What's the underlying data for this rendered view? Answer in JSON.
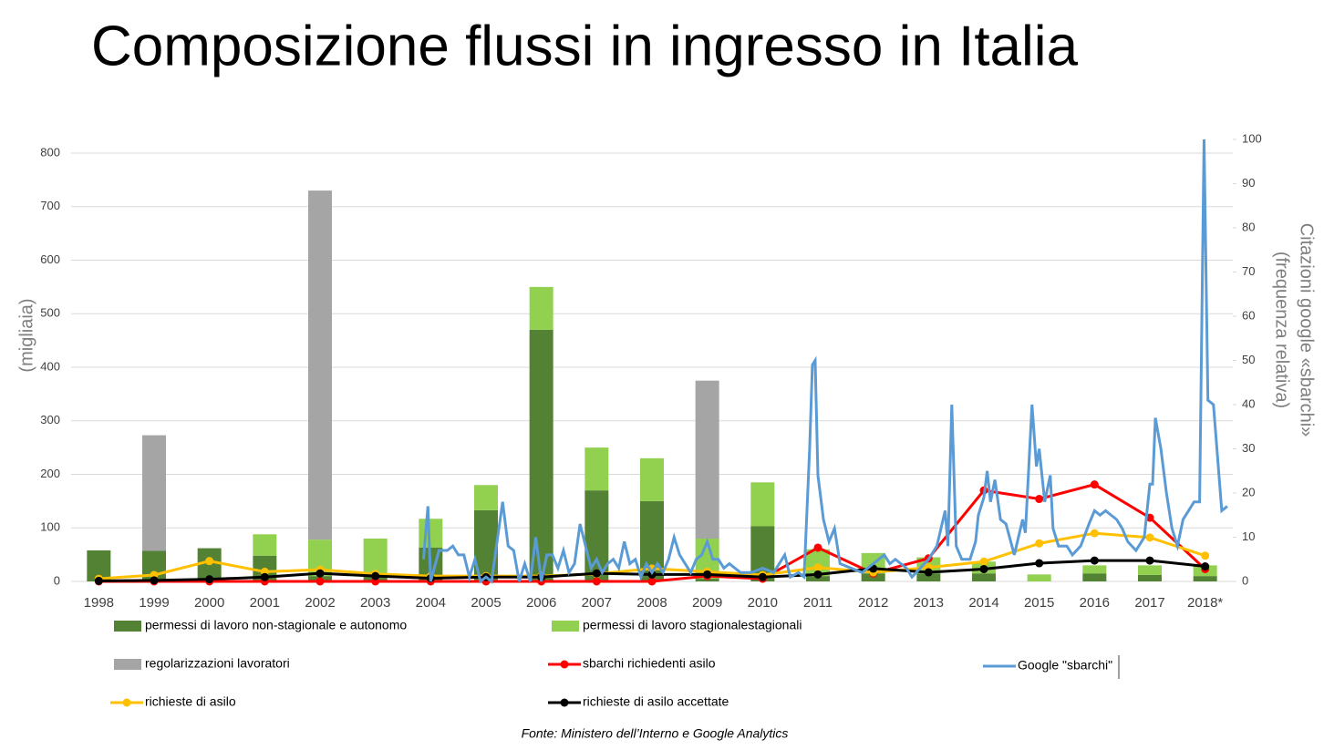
{
  "chart_data": {
    "type": "bar",
    "title": "Composizione flussi in ingresso in Italia",
    "ylabel": "(migliaia)",
    "y2label": [
      "Citazioni google «sbarchi»",
      "(frequenza relativa)"
    ],
    "source": "Fonte: Ministero dell’Interno e Google Analytics",
    "categories": [
      "1998",
      "1999",
      "2000",
      "2001",
      "2002",
      "2003",
      "2004",
      "2005",
      "2006",
      "2007",
      "2008",
      "2009",
      "2010",
      "2011",
      "2012",
      "2013",
      "2014",
      "2015",
      "2016",
      "2017",
      "2018*"
    ],
    "ylim": [
      0,
      800
    ],
    "yticks": [
      0,
      100,
      200,
      300,
      400,
      500,
      600,
      700,
      800
    ],
    "y2lim": [
      0,
      100
    ],
    "y2ticks": [
      0,
      10,
      20,
      30,
      40,
      50,
      60,
      70,
      80,
      90,
      100
    ],
    "grid": true,
    "series": [
      {
        "name": "permessi di lavoro non-stagionale e autonomo",
        "type": "bar",
        "color": "#548235",
        "values": [
          58,
          57,
          62,
          48,
          10,
          10,
          63,
          133,
          470,
          170,
          150,
          5,
          103,
          10,
          15,
          15,
          15,
          0,
          15,
          12,
          10
        ]
      },
      {
        "name": "permessi di lavoro stagionalestagionali",
        "type": "bar",
        "color": "#92d050",
        "values": [
          0,
          0,
          0,
          40,
          68,
          70,
          54,
          47,
          80,
          80,
          80,
          75,
          82,
          50,
          38,
          30,
          22,
          13,
          15,
          18,
          20
        ]
      },
      {
        "name": "regolarizzazioni lavoratori",
        "type": "bar",
        "color": "#a5a5a5",
        "values": [
          0,
          216,
          0,
          0,
          652,
          0,
          0,
          0,
          0,
          0,
          0,
          295,
          0,
          0,
          0,
          0,
          0,
          0,
          0,
          0,
          0
        ]
      },
      {
        "name": "sbarchi richiedenti asilo",
        "type": "line",
        "color": "#ff0000",
        "values": [
          0,
          0,
          0,
          0,
          0,
          0,
          0,
          0,
          0,
          0,
          0,
          10,
          5,
          63,
          15,
          43,
          170,
          154,
          181,
          119,
          23
        ]
      },
      {
        "name": "richieste di asilo",
        "type": "line",
        "color": "#ffc000",
        "values": [
          5,
          12,
          38,
          18,
          22,
          14,
          10,
          10,
          10,
          14,
          24,
          18,
          12,
          26,
          17,
          26,
          37,
          71,
          90,
          82,
          48
        ]
      },
      {
        "name": "richieste di asilo accettate",
        "type": "line",
        "color": "#000000",
        "values": [
          1,
          2,
          4,
          8,
          15,
          10,
          6,
          8,
          8,
          15,
          13,
          13,
          8,
          13,
          24,
          17,
          23,
          34,
          39,
          39,
          28
        ]
      },
      {
        "name": "Google \"sbarchi\"",
        "type": "line",
        "axis": "y2",
        "color": "#5b9bd5",
        "x": [
          2003.87,
          2003.95,
          2004.0,
          2004.15,
          2004.3,
          2004.4,
          2004.5,
          2004.6,
          2004.7,
          2004.8,
          2004.9,
          2005.0,
          2005.1,
          2005.2,
          2005.3,
          2005.4,
          2005.5,
          2005.6,
          2005.7,
          2005.8,
          2005.9,
          2006.0,
          2006.1,
          2006.2,
          2006.3,
          2006.4,
          2006.5,
          2006.6,
          2006.7,
          2006.8,
          2006.9,
          2007.0,
          2007.1,
          2007.2,
          2007.3,
          2007.4,
          2007.5,
          2007.6,
          2007.7,
          2007.8,
          2007.9,
          2008.0,
          2008.1,
          2008.2,
          2008.3,
          2008.4,
          2008.5,
          2008.6,
          2008.7,
          2008.8,
          2008.9,
          2009.0,
          2009.1,
          2009.2,
          2009.3,
          2009.4,
          2009.6,
          2009.8,
          2010.0,
          2010.2,
          2010.4,
          2010.5,
          2010.65,
          2010.75,
          2010.85,
          2010.9,
          2010.95,
          2011.0,
          2011.1,
          2011.2,
          2011.3,
          2011.4,
          2011.6,
          2011.8,
          2012.0,
          2012.2,
          2012.3,
          2012.4,
          2012.6,
          2012.7,
          2012.85,
          2013.0,
          2013.15,
          2013.3,
          2013.35,
          2013.42,
          2013.5,
          2013.6,
          2013.75,
          2013.85,
          2013.9,
          2014.0,
          2014.06,
          2014.12,
          2014.2,
          2014.3,
          2014.4,
          2014.55,
          2014.7,
          2014.75,
          2014.87,
          2014.95,
          2015.0,
          2015.1,
          2015.2,
          2015.25,
          2015.35,
          2015.5,
          2015.6,
          2015.75,
          2015.9,
          2016.0,
          2016.1,
          2016.2,
          2016.3,
          2016.4,
          2016.5,
          2016.6,
          2016.75,
          2016.9,
          2017.0,
          2017.05,
          2017.1,
          2017.2,
          2017.3,
          2017.4,
          2017.5,
          2017.6,
          2017.7,
          2017.8,
          2017.9,
          2017.98,
          2018.05,
          2018.15,
          2018.3,
          2018.4
        ],
        "values": [
          5,
          17,
          0,
          7,
          7,
          8,
          6,
          6,
          1,
          5,
          0,
          1,
          0,
          9,
          18,
          8,
          7,
          0,
          4,
          0,
          10,
          0,
          6,
          6,
          3,
          7,
          2,
          4,
          13,
          8,
          3,
          5,
          2,
          4,
          5,
          3,
          9,
          4,
          5,
          1,
          4,
          2,
          4,
          2,
          5,
          10,
          6,
          4,
          2,
          5,
          6,
          9,
          5,
          5,
          3,
          4,
          2,
          2,
          3,
          2,
          6,
          1,
          2,
          1,
          30,
          49,
          50,
          24,
          14,
          9,
          12,
          4,
          3,
          2,
          4,
          6,
          4,
          5,
          3,
          1,
          3,
          5,
          8,
          16,
          8,
          40,
          8,
          5,
          5,
          9,
          15,
          19,
          25,
          18,
          23,
          14,
          13,
          6,
          14,
          11,
          40,
          26,
          30,
          18,
          24,
          12,
          8,
          8,
          6,
          8,
          13,
          16,
          15,
          16,
          15,
          14,
          12,
          9,
          7,
          10,
          22,
          22,
          37,
          30,
          20,
          12,
          8,
          14,
          16,
          18,
          18,
          100,
          41,
          40,
          16,
          17
        ]
      }
    ]
  }
}
